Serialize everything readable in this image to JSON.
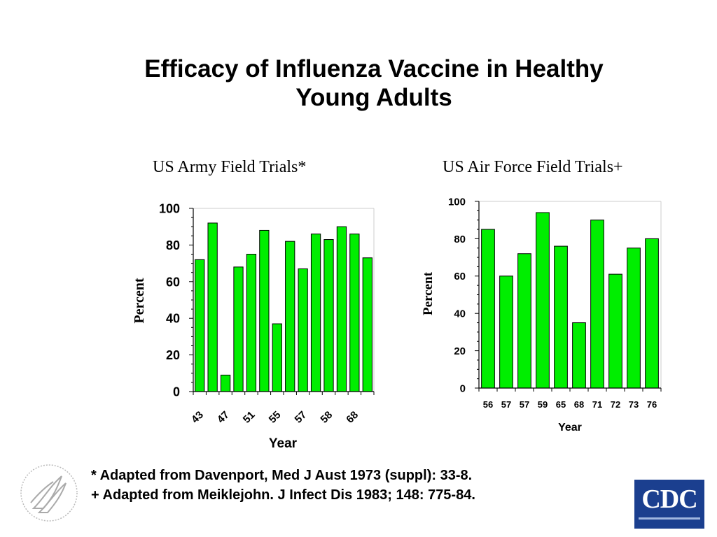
{
  "title": {
    "line1": "Efficacy of Influenza Vaccine in Healthy",
    "line2": "Young Adults"
  },
  "footnotes": [
    "* Adapted from Davenport, Med J Aust 1973 (suppl): 33-8.",
    "+ Adapted from Meiklejohn. J Infect Dis 1983; 148: 775-84."
  ],
  "logos": {
    "hhs": "hhs-eagle-seal",
    "cdc_text": "CDC"
  },
  "colors": {
    "bar": "#00ee00",
    "bar_stroke": "#000000"
  },
  "chart_data": [
    {
      "type": "bar",
      "title": "US Army Field Trials*",
      "xlabel": "Year",
      "ylabel": "Percent",
      "ylim": [
        0,
        100
      ],
      "yticks": [
        0,
        20,
        40,
        60,
        80,
        100
      ],
      "xtick_labels": [
        "43",
        "47",
        "51",
        "55",
        "57",
        "58",
        "68"
      ],
      "values": [
        72,
        92,
        9,
        68,
        75,
        88,
        37,
        82,
        67,
        86,
        83,
        90,
        86,
        73
      ],
      "grid": false
    },
    {
      "type": "bar",
      "title": "US Air Force Field Trials+",
      "xlabel": "Year",
      "ylabel": "Percent",
      "ylim": [
        0,
        100
      ],
      "yticks": [
        0,
        20,
        40,
        60,
        80,
        100
      ],
      "categories": [
        "56",
        "57",
        "57",
        "59",
        "65",
        "68",
        "71",
        "72",
        "73",
        "76"
      ],
      "values": [
        85,
        60,
        72,
        94,
        76,
        35,
        90,
        61,
        75,
        80
      ],
      "grid": false
    }
  ]
}
